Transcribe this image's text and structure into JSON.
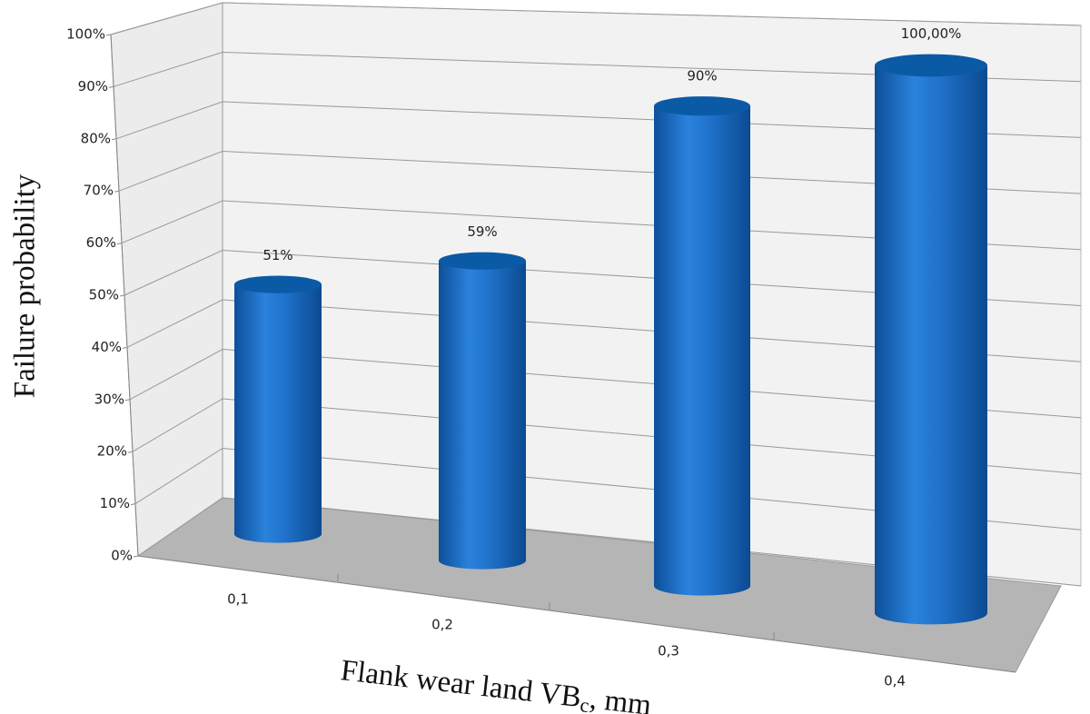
{
  "chart_data": {
    "type": "bar3d",
    "y_label": "Failure probability",
    "x_label": "Flank wear land VB",
    "x_label_subscript": "c",
    "x_label_suffix": ", mm",
    "categories": [
      "0,1",
      "0,2",
      "0,3",
      "0,4"
    ],
    "values": [
      51,
      59,
      90,
      100
    ],
    "value_labels": [
      "51%",
      "59%",
      "90%",
      "100,00%"
    ],
    "color": "#1f6fc8",
    "ylim": [
      0,
      100
    ],
    "yticks": [
      {
        "value": 0,
        "label": "0%"
      },
      {
        "value": 10,
        "label": "10%"
      },
      {
        "value": 20,
        "label": "20%"
      },
      {
        "value": 30,
        "label": "30%"
      },
      {
        "value": 40,
        "label": "40%"
      },
      {
        "value": 50,
        "label": "50%"
      },
      {
        "value": 60,
        "label": "60%"
      },
      {
        "value": 70,
        "label": "70%"
      },
      {
        "value": 80,
        "label": "80%"
      },
      {
        "value": 90,
        "label": "90%"
      },
      {
        "value": 100,
        "label": "100%"
      }
    ],
    "grid": true
  }
}
